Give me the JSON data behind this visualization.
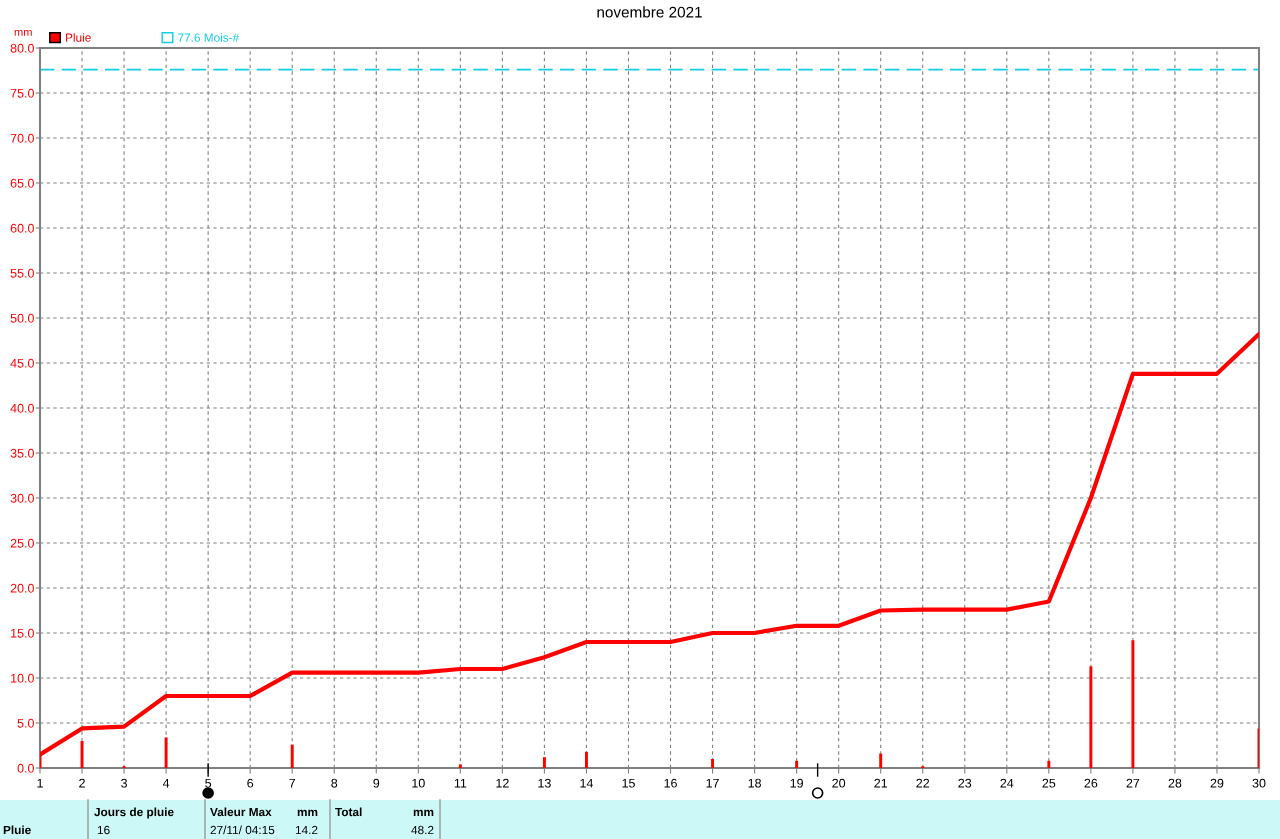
{
  "chart_data": {
    "type": "line",
    "title": "novembre 2021",
    "ylabel": "mm",
    "x": [
      1,
      2,
      3,
      4,
      5,
      6,
      7,
      8,
      9,
      10,
      11,
      12,
      13,
      14,
      15,
      16,
      17,
      18,
      19,
      20,
      21,
      22,
      23,
      24,
      25,
      26,
      27,
      28,
      29,
      30
    ],
    "series": [
      {
        "name": "Pluie",
        "type": "bar",
        "color": "#ff0000",
        "values": [
          1.5,
          3.0,
          0.2,
          3.4,
          null,
          null,
          2.6,
          null,
          null,
          null,
          0.4,
          null,
          1.2,
          1.8,
          null,
          null,
          1.0,
          null,
          0.8,
          null,
          1.6,
          0.2,
          null,
          null,
          0.8,
          11.3,
          14.2,
          null,
          null,
          4.4
        ]
      },
      {
        "color": "#ff0000",
        "values": [
          1.5,
          4.4,
          4.6,
          8.0,
          8.0,
          8.0,
          10.6,
          10.6,
          10.6,
          10.6,
          11.0,
          11.0,
          12.3,
          14.0,
          14.0,
          14.0,
          15.0,
          15.0,
          15.8,
          15.8,
          17.5,
          17.6,
          17.6,
          17.6,
          18.5,
          30.0,
          43.8,
          43.8,
          43.8,
          48.2
        ]
      }
    ],
    "xlim": [
      1,
      30
    ],
    "xticks": [
      1,
      2,
      3,
      4,
      5,
      6,
      7,
      8,
      9,
      10,
      11,
      12,
      13,
      14,
      15,
      16,
      17,
      18,
      19,
      20,
      21,
      22,
      23,
      24,
      25,
      26,
      27,
      28,
      29,
      30
    ],
    "ylim": [
      0,
      80
    ],
    "yticks": [
      {
        "value": 0,
        "label": "0.0"
      },
      {
        "value": 5,
        "label": "5.0"
      },
      {
        "value": 10,
        "label": "10.0"
      },
      {
        "value": 15,
        "label": "15.0"
      },
      {
        "value": 20,
        "label": "20.0"
      },
      {
        "value": 25,
        "label": "25.0"
      },
      {
        "value": 30,
        "label": "30.0"
      },
      {
        "value": 35,
        "label": "35.0"
      },
      {
        "value": 40,
        "label": "40.0"
      },
      {
        "value": 45,
        "label": "45.0"
      },
      {
        "value": 50,
        "label": "50.0"
      },
      {
        "value": 55,
        "label": "55.0"
      },
      {
        "value": 60,
        "label": "60.0"
      },
      {
        "value": 65,
        "label": "65.0"
      },
      {
        "value": 70,
        "label": "70.0"
      },
      {
        "value": 75,
        "label": "75.0"
      },
      {
        "value": 80,
        "label": "80.0"
      }
    ],
    "ref_lines": [
      {
        "axis": "y",
        "value": 77.6,
        "label": "77.6 Mois-#",
        "color": "#10d0e0",
        "line_style": "dashed"
      }
    ],
    "grid": true,
    "legend": "top left",
    "marker": "none",
    "line_style": "solid",
    "annotations": [
      "Pluie",
      "Jours de pluie",
      "16",
      "Valeur Max",
      "mm",
      "27/11/ 04:15",
      "14.2",
      "Total",
      "mm",
      "48.2"
    ]
  }
}
